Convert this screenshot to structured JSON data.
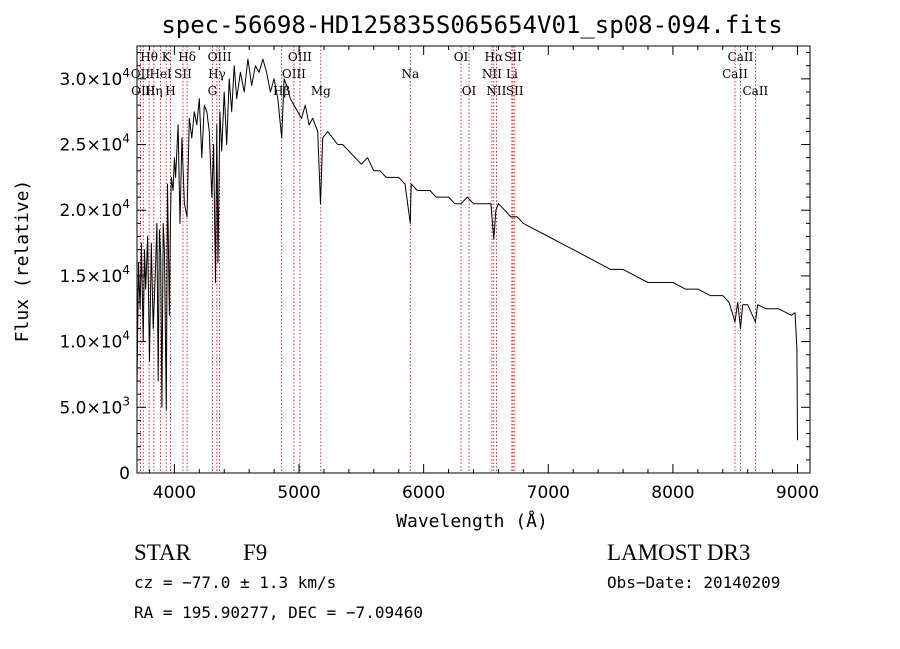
{
  "chart_data": {
    "type": "line",
    "title": "spec-56698-HD125835S065654V01_sp08-094.fits",
    "xlabel": "Wavelength (Å)",
    "ylabel": "Flux (relative)",
    "xlim": [
      3700,
      9100
    ],
    "ylim": [
      0,
      32500
    ],
    "xticks": [
      4000,
      5000,
      6000,
      7000,
      8000,
      9000
    ],
    "xtick_labels": [
      "4000",
      "5000",
      "6000",
      "7000",
      "8000",
      "9000"
    ],
    "yticks": [
      0,
      5000,
      10000,
      15000,
      20000,
      25000,
      30000
    ],
    "ytick_labels": [
      {
        "mant": "0",
        "exp": ""
      },
      {
        "mant": "5.0×10",
        "exp": "3"
      },
      {
        "mant": "1.0×10",
        "exp": "4"
      },
      {
        "mant": "1.5×10",
        "exp": "4"
      },
      {
        "mant": "2.0×10",
        "exp": "4"
      },
      {
        "mant": "2.5×10",
        "exp": "4"
      },
      {
        "mant": "3.0×10",
        "exp": "4"
      }
    ],
    "series": [
      {
        "name": "spectrum",
        "color": "#000000",
        "x": [
          3700,
          3712,
          3725,
          3735,
          3750,
          3760,
          3770,
          3785,
          3800,
          3815,
          3830,
          3850,
          3860,
          3870,
          3880,
          3890,
          3900,
          3910,
          3920,
          3935,
          3945,
          3960,
          3968,
          3975,
          3990,
          4000,
          4010,
          4030,
          4045,
          4060,
          4080,
          4101,
          4120,
          4140,
          4160,
          4180,
          4200,
          4220,
          4240,
          4260,
          4280,
          4300,
          4315,
          4330,
          4340,
          4350,
          4365,
          4380,
          4400,
          4420,
          4440,
          4460,
          4480,
          4500,
          4530,
          4560,
          4590,
          4620,
          4650,
          4680,
          4710,
          4740,
          4770,
          4800,
          4830,
          4861,
          4880,
          4900,
          4930,
          4960,
          4990,
          5020,
          5050,
          5080,
          5110,
          5150,
          5172,
          5190,
          5230,
          5270,
          5310,
          5350,
          5400,
          5450,
          5500,
          5550,
          5600,
          5650,
          5700,
          5750,
          5800,
          5850,
          5893,
          5900,
          5950,
          6000,
          6050,
          6100,
          6150,
          6200,
          6250,
          6300,
          6350,
          6400,
          6450,
          6500,
          6540,
          6563,
          6580,
          6600,
          6650,
          6700,
          6750,
          6800,
          6900,
          7000,
          7100,
          7200,
          7300,
          7400,
          7500,
          7600,
          7700,
          7800,
          7900,
          8000,
          8100,
          8200,
          8300,
          8400,
          8450,
          8498,
          8520,
          8542,
          8560,
          8600,
          8662,
          8680,
          8750,
          8850,
          8950,
          8980,
          8995,
          9000
        ],
        "y": [
          6500,
          16000,
          12500,
          17500,
          10000,
          17000,
          14000,
          18000,
          8500,
          17500,
          11000,
          16000,
          19000,
          7000,
          18500,
          16500,
          5000,
          19000,
          17000,
          4800,
          22000,
          12000,
          19000,
          22500,
          21500,
          24000,
          22500,
          26500,
          19000,
          25500,
          20500,
          19500,
          27000,
          25500,
          27500,
          26500,
          28500,
          24000,
          28000,
          27500,
          26000,
          21000,
          25000,
          14500,
          26500,
          16000,
          27500,
          24500,
          29000,
          25000,
          30000,
          27500,
          31000,
          28500,
          30500,
          29000,
          31500,
          29500,
          31000,
          30500,
          31500,
          30500,
          29000,
          30000,
          28500,
          25500,
          30000,
          29500,
          28500,
          28000,
          27500,
          27000,
          28000,
          26500,
          27000,
          26000,
          20500,
          25500,
          26000,
          25500,
          25000,
          25000,
          24500,
          24000,
          23500,
          24000,
          23000,
          23000,
          22500,
          22500,
          22500,
          22000,
          19000,
          22000,
          21500,
          21500,
          21500,
          21000,
          21000,
          21000,
          20500,
          20500,
          21000,
          20500,
          20500,
          20500,
          20500,
          17800,
          20000,
          20500,
          20000,
          19500,
          19500,
          19000,
          18500,
          18000,
          17500,
          17000,
          16500,
          16000,
          15500,
          15500,
          15000,
          14500,
          14500,
          14500,
          14000,
          14000,
          13500,
          13500,
          13000,
          11500,
          13000,
          11000,
          12800,
          12800,
          11500,
          12800,
          12500,
          12500,
          12000,
          12200,
          9500,
          2500
        ]
      }
    ],
    "line_groups": [
      {
        "label": "Hθ",
        "wl": 3797,
        "row": 0
      },
      {
        "label": "OII",
        "wl": 3727,
        "row": 1
      },
      {
        "label": "OIII",
        "wl": 3750,
        "row": 2
      },
      {
        "label": "Hη",
        "wl": 3835,
        "row": 2
      },
      {
        "label": "HeI",
        "wl": 3889,
        "row": 1
      },
      {
        "label": "K",
        "wl": 3934,
        "row": 0
      },
      {
        "label": "SII",
        "wl": 4069,
        "row": 1
      },
      {
        "label": "H",
        "wl": 3969,
        "row": 2
      },
      {
        "label": "Hδ",
        "wl": 4102,
        "row": 0
      },
      {
        "label": "OIII",
        "wl": 4363,
        "row": 0
      },
      {
        "label": "Hγ",
        "wl": 4341,
        "row": 1
      },
      {
        "label": "G",
        "wl": 4305,
        "row": 2
      },
      {
        "label": "OIII",
        "wl": 5007,
        "row": 0
      },
      {
        "label": "OIII",
        "wl": 4959,
        "row": 1
      },
      {
        "label": "Hβ",
        "wl": 4861,
        "row": 2
      },
      {
        "label": "Mg",
        "wl": 5175,
        "row": 2
      },
      {
        "label": "Na",
        "wl": 5893,
        "row": 1
      },
      {
        "label": "OI",
        "wl": 6300,
        "row": 0
      },
      {
        "label": "OI",
        "wl": 6364,
        "row": 2
      },
      {
        "label": "Hα",
        "wl": 6563,
        "row": 0
      },
      {
        "label": "SII",
        "wl": 6717,
        "row": 0
      },
      {
        "label": "NII",
        "wl": 6548,
        "row": 1
      },
      {
        "label": "Li",
        "wl": 6708,
        "row": 1
      },
      {
        "label": "NII",
        "wl": 6584,
        "row": 2
      },
      {
        "label": "SII",
        "wl": 6731,
        "row": 2
      },
      {
        "label": "CaII",
        "wl": 8542,
        "row": 0
      },
      {
        "label": "CaII",
        "wl": 8498,
        "row": 1
      },
      {
        "label": "CaII",
        "wl": 8662,
        "row": 2
      }
    ],
    "marker_lines": [
      3727,
      3750,
      3797,
      3835,
      3889,
      3934,
      3969,
      4069,
      4102,
      4305,
      4341,
      4363,
      4861,
      4959,
      5007,
      5175,
      5893,
      6300,
      6364,
      6548,
      6563,
      6584,
      6708,
      6717,
      6731,
      8498,
      8542,
      8662
    ],
    "marker_color": "#cc0000"
  },
  "info": {
    "object_class": "STAR",
    "subclass": "F9",
    "survey": "LAMOST DR3",
    "cz": "cz = −77.0 ± 1.3 km/s",
    "obs_date": "Obs−Date: 20140209",
    "coords": "RA = 195.90277, DEC =  −7.09460"
  }
}
